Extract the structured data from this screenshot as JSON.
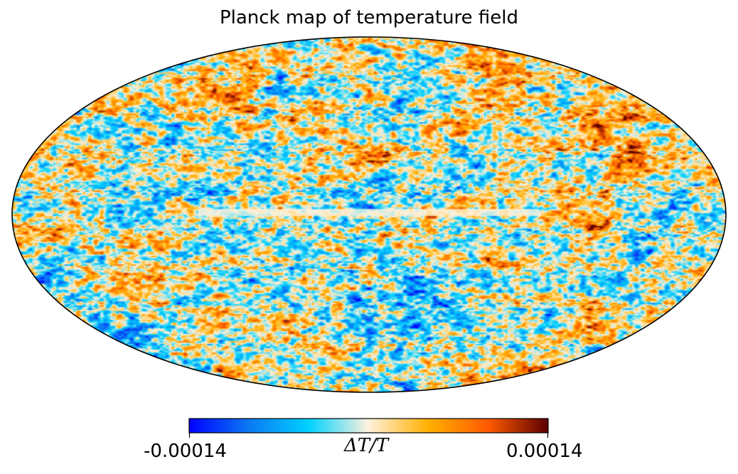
{
  "chart_data": {
    "type": "heatmap",
    "title": "Planck map of temperature field",
    "projection": "mollweide",
    "colorbar": {
      "orientation": "horizontal",
      "vmin": -0.00014,
      "vmax": 0.00014,
      "tick_labels": [
        "-0.00014",
        "0.00014"
      ],
      "label": "ΔT/T",
      "colormap": [
        "#0000ff",
        "#0b79f4",
        "#00d2ff",
        "#fff1dc",
        "#ffb000",
        "#ff5a00",
        "#5a0000"
      ]
    },
    "grid": false,
    "legend": "none"
  },
  "colors": {
    "outline": "#000000",
    "background": "#ffffff"
  }
}
